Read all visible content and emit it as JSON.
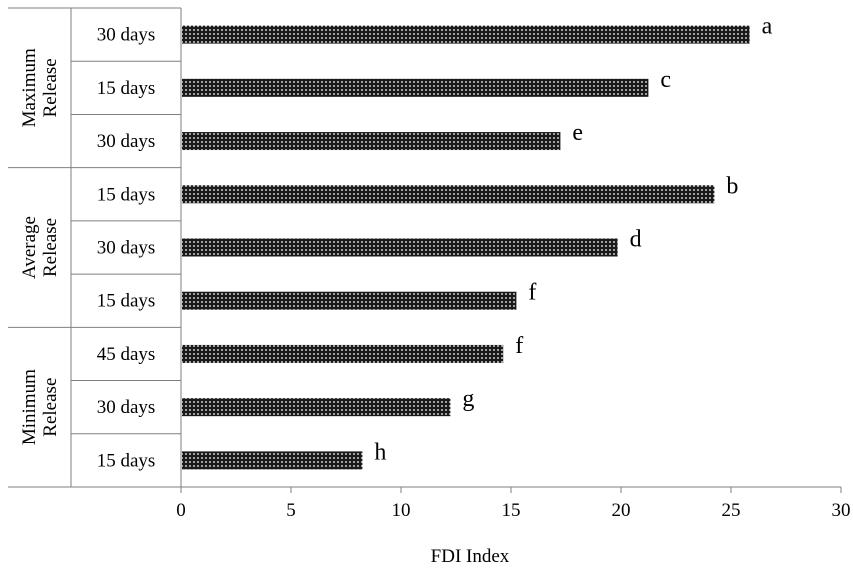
{
  "chart_data": {
    "type": "bar",
    "orientation": "horizontal",
    "xlabel": "FDI Index",
    "ylabel": "",
    "xlim": [
      0,
      30
    ],
    "x_ticks": [
      "0",
      "5",
      "10",
      "15",
      "20",
      "25",
      "30"
    ],
    "grid": false,
    "groups": [
      {
        "name": "Maximum Release",
        "lines": [
          "Maximum",
          "Release"
        ],
        "bars": [
          {
            "label": "30 days",
            "value": 25.8,
            "letter": "a"
          },
          {
            "label": "15 days",
            "value": 21.2,
            "letter": "c"
          },
          {
            "label": "30 days",
            "value": 17.2,
            "letter": "e"
          }
        ]
      },
      {
        "name": "Average Release",
        "lines": [
          "Average",
          "Release"
        ],
        "bars": [
          {
            "label": "15 days",
            "value": 24.2,
            "letter": "b"
          },
          {
            "label": "30 days",
            "value": 19.8,
            "letter": "d"
          },
          {
            "label": "15 days",
            "value": 15.2,
            "letter": "f"
          }
        ]
      },
      {
        "name": "Minimum Release",
        "lines": [
          "Minimum",
          "Release"
        ],
        "bars": [
          {
            "label": "45 days",
            "value": 14.6,
            "letter": "f"
          },
          {
            "label": "30 days",
            "value": 12.2,
            "letter": "g"
          },
          {
            "label": "15 days",
            "value": 8.2,
            "letter": "h"
          }
        ]
      }
    ],
    "colors": {
      "bar_fill": "#1a1a1a",
      "bar_dots": "#ffffff",
      "axis": "#7f7f7f"
    }
  }
}
